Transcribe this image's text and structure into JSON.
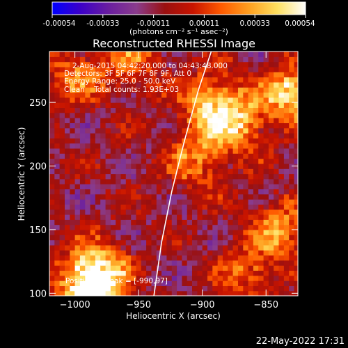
{
  "chart_data": {
    "type": "heatmap",
    "title": "Reconstructed RHESSI Image",
    "xlabel": "Heliocentric X (arcsec)",
    "ylabel": "Heliocentric Y (arcsec)",
    "xlim": [
      -1020,
      -825
    ],
    "ylim": [
      98,
      290
    ],
    "x_ticks": [
      -1000,
      -950,
      -900,
      -850
    ],
    "y_ticks": [
      100,
      150,
      200,
      250
    ],
    "colorbar": {
      "min": -0.00054,
      "max": 0.00054,
      "ticks": [
        "-0.00054",
        "-0.00033",
        "-0.00011",
        "0.00011",
        "0.00033",
        "0.00054"
      ],
      "unit_label": "(photons cm⁻² s⁻¹ asec⁻²)",
      "colors": [
        "#0000ff",
        "#3c00c8",
        "#6a1ea0",
        "#8a3c8c",
        "#9a1010",
        "#c81400",
        "#ff5a00",
        "#ffa020",
        "#ffe060",
        "#ffffff"
      ]
    },
    "annotations": [
      "2-Aug-2015 04:42:20.000 to 04:43:48.000",
      "Detectors: 3F 5F 6F 7F 8F 9F, Att 0",
      "Energy Range: 25.0 - 50.0 keV",
      "Clean    Total counts: 1.93E+03"
    ],
    "peak_label": "Position of Peak = [-990,97]",
    "peak": [
      -990,
      97
    ],
    "limb_curve": [
      [
        -938,
        98
      ],
      [
        -932,
        140
      ],
      [
        -924,
        180
      ],
      [
        -914,
        220
      ],
      [
        -903,
        260
      ],
      [
        -893,
        290
      ]
    ],
    "hot_regions": [
      {
        "x": -895,
        "y": 248,
        "intensity": 0.00045
      },
      {
        "x": -875,
        "y": 232,
        "intensity": 0.0004
      },
      {
        "x": -832,
        "y": 255,
        "intensity": 0.00054
      },
      {
        "x": -905,
        "y": 205,
        "intensity": 0.00032
      },
      {
        "x": -985,
        "y": 115,
        "intensity": 0.0005
      },
      {
        "x": -990,
        "y": 100,
        "intensity": 0.00054
      },
      {
        "x": -840,
        "y": 150,
        "intensity": 0.00035
      },
      {
        "x": -865,
        "y": 115,
        "intensity": 0.0003
      },
      {
        "x": -1000,
        "y": 270,
        "intensity": 0.0003
      },
      {
        "x": -955,
        "y": 280,
        "intensity": 0.00025
      }
    ],
    "grid": false
  },
  "footer": {
    "timestamp": "22-May-2022 17:31"
  }
}
